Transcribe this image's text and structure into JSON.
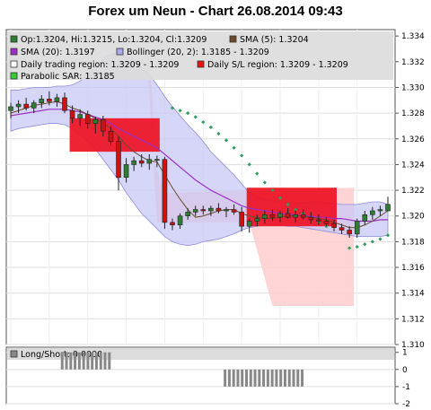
{
  "chart_data": [
    {
      "type": "candlestick",
      "title": "Forex um Neun - Chart 26.08.2014 09:43",
      "ylim": [
        1.31,
        1.3345
      ],
      "y_ticks": [
        "1.310",
        "1.312",
        "1.314",
        "1.316",
        "1.318",
        "1.320",
        "1.322",
        "1.324",
        "1.326",
        "1.328",
        "1.330",
        "1.332",
        "1.334"
      ],
      "grid": true,
      "legend_position": "top",
      "legend": [
        {
          "label": "Op:1.3204, Hi:1.3215, Lo:1.3204, Cl:1.3209",
          "color": "#2e7d32"
        },
        {
          "label": "SMA (5): 1.3204",
          "color": "#6b4a2a"
        },
        {
          "label": "SMA (20): 1.3197",
          "color": "#9b30c8"
        },
        {
          "label": "Bollinger (20, 2): 1.3185 - 1.3209",
          "color": "#aaaaee"
        },
        {
          "label": "Daily trading region: 1.3209 - 1.3209",
          "color": "#ffffff"
        },
        {
          "label": "Daily S/L region: 1.3209 - 1.3209",
          "color": "#ee1111"
        },
        {
          "label": "Parabolic SAR: 1.3185",
          "color": "#33cc33"
        }
      ],
      "colors": {
        "up": "#2e7d32",
        "down": "#cc1111",
        "sma5": "#6b4a2a",
        "sma20": "#9b30c8",
        "bollinger": "#c8c8f5",
        "sar": "#2e9e5e",
        "trading_region": "#ffcccc",
        "sl_region": "#ee1122"
      },
      "bars": [
        {
          "o": 1.3282,
          "h": 1.3288,
          "l": 1.3276,
          "c": 1.3285
        },
        {
          "o": 1.3285,
          "h": 1.329,
          "l": 1.328,
          "c": 1.3287
        },
        {
          "o": 1.3287,
          "h": 1.3292,
          "l": 1.3282,
          "c": 1.3284
        },
        {
          "o": 1.3284,
          "h": 1.329,
          "l": 1.328,
          "c": 1.3288
        },
        {
          "o": 1.3288,
          "h": 1.3294,
          "l": 1.3284,
          "c": 1.3291
        },
        {
          "o": 1.3291,
          "h": 1.3297,
          "l": 1.3286,
          "c": 1.3289
        },
        {
          "o": 1.3289,
          "h": 1.3295,
          "l": 1.3285,
          "c": 1.3292
        },
        {
          "o": 1.3292,
          "h": 1.3296,
          "l": 1.328,
          "c": 1.3282
        },
        {
          "o": 1.3282,
          "h": 1.3286,
          "l": 1.3272,
          "c": 1.3276
        },
        {
          "o": 1.3276,
          "h": 1.3283,
          "l": 1.327,
          "c": 1.3279
        },
        {
          "o": 1.3279,
          "h": 1.3282,
          "l": 1.3268,
          "c": 1.3272
        },
        {
          "o": 1.3272,
          "h": 1.3277,
          "l": 1.3264,
          "c": 1.3275
        },
        {
          "o": 1.3275,
          "h": 1.3278,
          "l": 1.3262,
          "c": 1.3266
        },
        {
          "o": 1.3266,
          "h": 1.327,
          "l": 1.3255,
          "c": 1.3258
        },
        {
          "o": 1.3258,
          "h": 1.3262,
          "l": 1.322,
          "c": 1.323
        },
        {
          "o": 1.323,
          "h": 1.3245,
          "l": 1.3226,
          "c": 1.324
        },
        {
          "o": 1.324,
          "h": 1.3246,
          "l": 1.3235,
          "c": 1.3243
        },
        {
          "o": 1.3243,
          "h": 1.3248,
          "l": 1.3238,
          "c": 1.3241
        },
        {
          "o": 1.3241,
          "h": 1.3248,
          "l": 1.3236,
          "c": 1.3244
        },
        {
          "o": 1.3244,
          "h": 1.3247,
          "l": 1.3238,
          "c": 1.3244
        },
        {
          "o": 1.3244,
          "h": 1.3246,
          "l": 1.319,
          "c": 1.3195
        },
        {
          "o": 1.3195,
          "h": 1.3198,
          "l": 1.3189,
          "c": 1.3193
        },
        {
          "o": 1.3193,
          "h": 1.3202,
          "l": 1.319,
          "c": 1.32
        },
        {
          "o": 1.32,
          "h": 1.3206,
          "l": 1.3197,
          "c": 1.3203
        },
        {
          "o": 1.3203,
          "h": 1.3208,
          "l": 1.32,
          "c": 1.3205
        },
        {
          "o": 1.3205,
          "h": 1.3208,
          "l": 1.3201,
          "c": 1.3204
        },
        {
          "o": 1.3204,
          "h": 1.3208,
          "l": 1.32,
          "c": 1.3206
        },
        {
          "o": 1.3206,
          "h": 1.321,
          "l": 1.3202,
          "c": 1.3204
        },
        {
          "o": 1.3204,
          "h": 1.3207,
          "l": 1.3199,
          "c": 1.3205
        },
        {
          "o": 1.3205,
          "h": 1.3209,
          "l": 1.3201,
          "c": 1.3203
        },
        {
          "o": 1.3203,
          "h": 1.3207,
          "l": 1.3188,
          "c": 1.3192
        },
        {
          "o": 1.3192,
          "h": 1.3198,
          "l": 1.3187,
          "c": 1.3196
        },
        {
          "o": 1.3196,
          "h": 1.3201,
          "l": 1.3192,
          "c": 1.3198
        },
        {
          "o": 1.3198,
          "h": 1.3204,
          "l": 1.3194,
          "c": 1.3201
        },
        {
          "o": 1.3201,
          "h": 1.3205,
          "l": 1.3196,
          "c": 1.3199
        },
        {
          "o": 1.3199,
          "h": 1.3204,
          "l": 1.3195,
          "c": 1.3202
        },
        {
          "o": 1.3202,
          "h": 1.3206,
          "l": 1.3198,
          "c": 1.3199
        },
        {
          "o": 1.3199,
          "h": 1.3204,
          "l": 1.3195,
          "c": 1.3201
        },
        {
          "o": 1.3201,
          "h": 1.3205,
          "l": 1.3197,
          "c": 1.3199
        },
        {
          "o": 1.3199,
          "h": 1.3203,
          "l": 1.3194,
          "c": 1.3197
        },
        {
          "o": 1.3197,
          "h": 1.3201,
          "l": 1.3193,
          "c": 1.3196
        },
        {
          "o": 1.3196,
          "h": 1.3199,
          "l": 1.3192,
          "c": 1.3194
        },
        {
          "o": 1.3194,
          "h": 1.3197,
          "l": 1.3188,
          "c": 1.3191
        },
        {
          "o": 1.3191,
          "h": 1.3194,
          "l": 1.3186,
          "c": 1.3189
        },
        {
          "o": 1.3189,
          "h": 1.3192,
          "l": 1.3183,
          "c": 1.3186
        },
        {
          "o": 1.3186,
          "h": 1.3198,
          "l": 1.3183,
          "c": 1.3196
        },
        {
          "o": 1.3196,
          "h": 1.3204,
          "l": 1.3193,
          "c": 1.3201
        },
        {
          "o": 1.3201,
          "h": 1.3207,
          "l": 1.3197,
          "c": 1.3204
        },
        {
          "o": 1.3204,
          "h": 1.3208,
          "l": 1.32,
          "c": 1.3205
        },
        {
          "o": 1.3204,
          "h": 1.3215,
          "l": 1.3204,
          "c": 1.3209
        }
      ],
      "sma5": [
        1.328,
        1.3282,
        1.3284,
        1.3286,
        1.3287,
        1.3288,
        1.3289,
        1.3287,
        1.3284,
        1.3282,
        1.3279,
        1.3276,
        1.3272,
        1.3268,
        1.3262,
        1.3255,
        1.325,
        1.3246,
        1.3243,
        1.3242,
        1.3232,
        1.3222,
        1.3213,
        1.3205,
        1.3199,
        1.32,
        1.3202,
        1.3204,
        1.3205,
        1.3205,
        1.3202,
        1.32,
        1.3199,
        1.3198,
        1.3198,
        1.3199,
        1.32,
        1.32,
        1.32,
        1.3199,
        1.3198,
        1.3197,
        1.3195,
        1.3193,
        1.3191,
        1.3191,
        1.3193,
        1.3196,
        1.32,
        1.3204
      ],
      "sma20": [
        1.3278,
        1.3279,
        1.328,
        1.3281,
        1.3282,
        1.3283,
        1.3283,
        1.3283,
        1.3282,
        1.3281,
        1.3279,
        1.3277,
        1.3275,
        1.3272,
        1.3268,
        1.3265,
        1.3262,
        1.3259,
        1.3256,
        1.3253,
        1.3248,
        1.3243,
        1.3238,
        1.3233,
        1.3228,
        1.3224,
        1.322,
        1.3217,
        1.3214,
        1.3211,
        1.3208,
        1.3206,
        1.3205,
        1.3204,
        1.3203,
        1.3202,
        1.3201,
        1.3201,
        1.32,
        1.32,
        1.3199,
        1.3199,
        1.3198,
        1.3198,
        1.3197,
        1.3196,
        1.3196,
        1.3196,
        1.3197,
        1.3197
      ],
      "bollinger_upper": [
        1.3298,
        1.3298,
        1.3299,
        1.33,
        1.33,
        1.33,
        1.3301,
        1.3301,
        1.3302,
        1.3305,
        1.331,
        1.3316,
        1.3322,
        1.3326,
        1.3327,
        1.3326,
        1.3322,
        1.3316,
        1.331,
        1.3302,
        1.3293,
        1.3285,
        1.3278,
        1.3271,
        1.3265,
        1.3258,
        1.325,
        1.3244,
        1.3238,
        1.3232,
        1.3225,
        1.3218,
        1.3215,
        1.3213,
        1.3212,
        1.3211,
        1.321,
        1.321,
        1.321,
        1.3211,
        1.3211,
        1.321,
        1.321,
        1.3209,
        1.3209,
        1.3209,
        1.321,
        1.3211,
        1.3211,
        1.3209
      ],
      "bollinger_lower": [
        1.3266,
        1.3268,
        1.3269,
        1.327,
        1.3271,
        1.3272,
        1.3272,
        1.3271,
        1.3268,
        1.3263,
        1.3258,
        1.3252,
        1.3244,
        1.3236,
        1.3228,
        1.3218,
        1.321,
        1.3202,
        1.3196,
        1.319,
        1.3184,
        1.318,
        1.3178,
        1.3177,
        1.3178,
        1.318,
        1.3181,
        1.3182,
        1.3184,
        1.3186,
        1.3189,
        1.3191,
        1.3192,
        1.3193,
        1.3193,
        1.3193,
        1.3192,
        1.3192,
        1.3191,
        1.319,
        1.3189,
        1.3188,
        1.3187,
        1.3186,
        1.3185,
        1.3184,
        1.3184,
        1.3184,
        1.3184,
        1.3185
      ],
      "sar": [
        null,
        null,
        null,
        null,
        null,
        null,
        null,
        null,
        null,
        null,
        null,
        null,
        null,
        null,
        null,
        null,
        null,
        null,
        null,
        null,
        null,
        1.3284,
        1.3282,
        1.328,
        1.3277,
        1.3273,
        1.3269,
        1.3264,
        1.3259,
        1.3253,
        1.3247,
        1.324,
        1.3233,
        1.3226,
        1.322,
        1.3214,
        1.3209,
        1.3205,
        1.3202,
        1.3198,
        1.3195,
        1.3192,
        null,
        null,
        1.3175,
        1.3176,
        1.3178,
        1.318,
        1.3182,
        1.3185
      ],
      "trading_region": {
        "from_bar": 18,
        "to_bar": 44,
        "low": 1.313,
        "high": 1.3342
      },
      "sl_regions": [
        {
          "from_bar": 8,
          "to_bar": 19,
          "low": 1.325,
          "high": 1.3276
        },
        {
          "from_bar": 31,
          "to_bar": 42,
          "low": 1.3192,
          "high": 1.3222
        }
      ]
    },
    {
      "type": "bar",
      "title": "",
      "legend": [
        {
          "label": "Long/Short: 0.0000",
          "color": "#888888"
        }
      ],
      "ylim": [
        -2,
        1.3
      ],
      "y_ticks": [
        "1",
        "0",
        "-1",
        "-2"
      ],
      "grid": true,
      "values": [
        0,
        0,
        0,
        0,
        0,
        0,
        0,
        0,
        0,
        0,
        0,
        0,
        1,
        1,
        1,
        1,
        1,
        1,
        1,
        1,
        1,
        1,
        1,
        1,
        0,
        0,
        0,
        0,
        0,
        0,
        0,
        0,
        0,
        0,
        0,
        0,
        0,
        0,
        0,
        0,
        0,
        0,
        0,
        0,
        0,
        0,
        0,
        0,
        0,
        0,
        -1,
        -1,
        -1,
        -1,
        -1,
        -1,
        -1,
        -1,
        -1,
        -1,
        -1,
        -1,
        -1,
        -1,
        -1,
        -1,
        -1,
        -1,
        -1,
        0,
        0,
        0,
        0,
        0,
        0,
        0,
        0,
        0,
        0,
        0,
        0,
        0,
        0,
        0,
        0,
        0,
        0,
        0,
        0
      ]
    }
  ]
}
